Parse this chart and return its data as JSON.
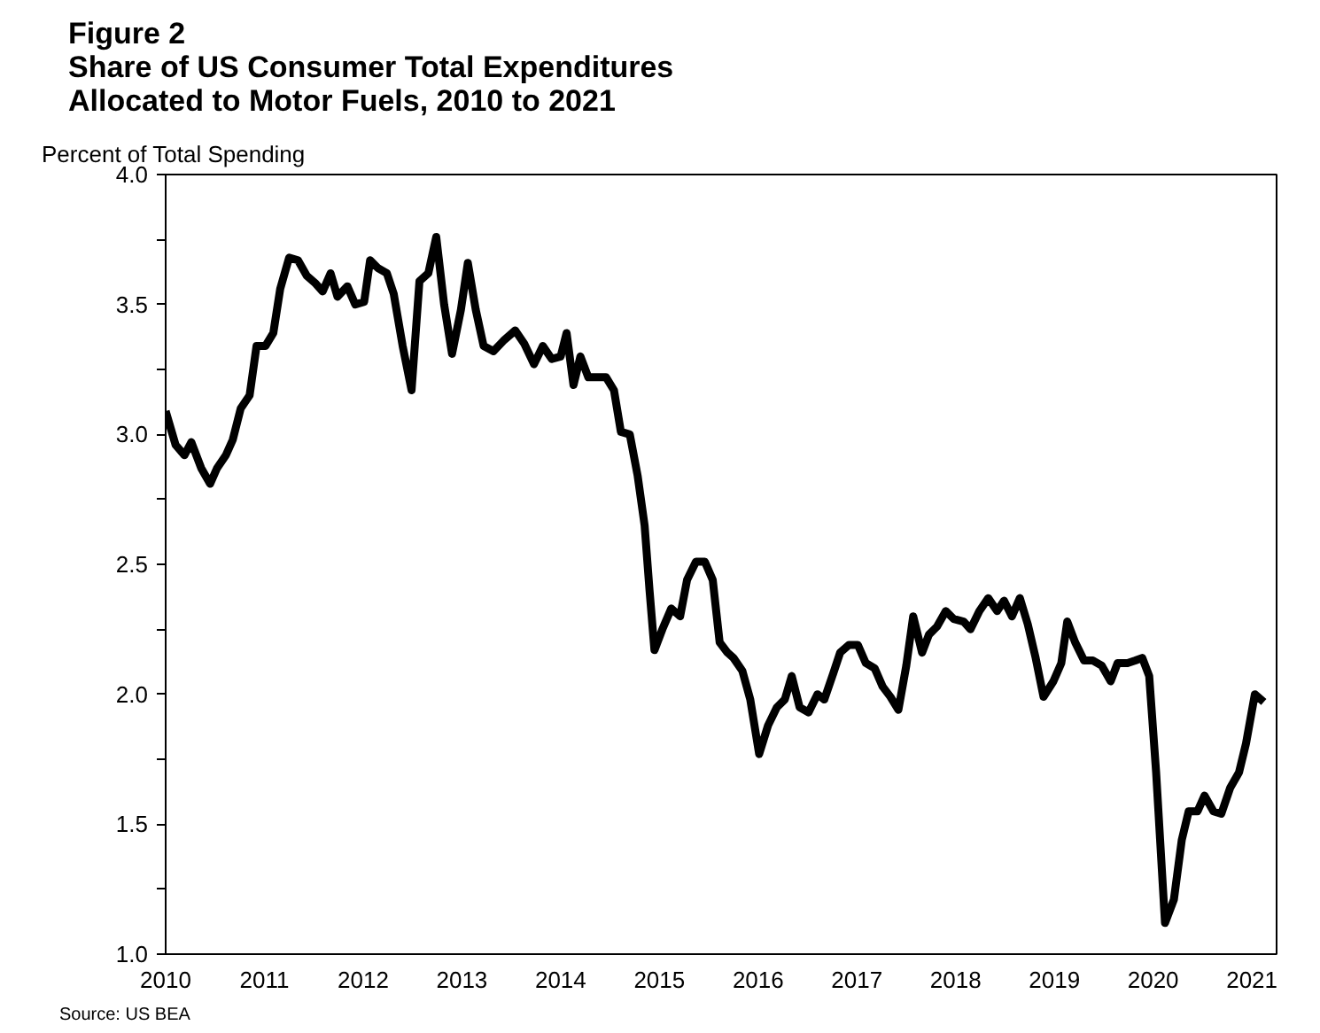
{
  "chart_data": {
    "type": "line",
    "title": "Figure 2\nShare of US Consumer Total Expenditures\nAllocated to Motor Fuels, 2010 to 2021",
    "ylabel": "Percent of Total Spending",
    "annotations": [
      "Source: US BEA"
    ],
    "x": [
      2010.0,
      2010.1,
      2010.19,
      2010.26,
      2010.36,
      2010.45,
      2010.52,
      2010.61,
      2010.68,
      2010.76,
      2010.85,
      2010.92,
      2011.01,
      2011.09,
      2011.16,
      2011.25,
      2011.34,
      2011.43,
      2011.52,
      2011.59,
      2011.67,
      2011.74,
      2011.84,
      2011.92,
      2012.01,
      2012.07,
      2012.15,
      2012.24,
      2012.31,
      2012.4,
      2012.49,
      2012.57,
      2012.66,
      2012.74,
      2012.82,
      2012.9,
      2012.99,
      2013.06,
      2013.14,
      2013.22,
      2013.32,
      2013.42,
      2013.54,
      2013.63,
      2013.73,
      2013.82,
      2013.91,
      2014.0,
      2014.06,
      2014.13,
      2014.2,
      2014.28,
      2014.37,
      2014.46,
      2014.54,
      2014.61,
      2014.7,
      2014.78,
      2014.85,
      2014.9,
      2014.95,
      2015.03,
      2015.12,
      2015.21,
      2015.28,
      2015.37,
      2015.46,
      2015.54,
      2015.61,
      2015.69,
      2015.75,
      2015.84,
      2015.92,
      2016.01,
      2016.1,
      2016.19,
      2016.27,
      2016.34,
      2016.42,
      2016.51,
      2016.6,
      2016.67,
      2016.76,
      2016.83,
      2016.92,
      2017.01,
      2017.09,
      2017.18,
      2017.26,
      2017.34,
      2017.42,
      2017.5,
      2017.57,
      2017.66,
      2017.73,
      2017.81,
      2017.9,
      2017.98,
      2018.08,
      2018.15,
      2018.24,
      2018.33,
      2018.42,
      2018.49,
      2018.57,
      2018.65,
      2018.73,
      2018.81,
      2018.89,
      2018.99,
      2019.07,
      2019.13,
      2019.21,
      2019.3,
      2019.39,
      2019.48,
      2019.57,
      2019.64,
      2019.74,
      2019.82,
      2019.89,
      2019.96,
      2020.03,
      2020.12,
      2020.21,
      2020.29,
      2020.36,
      2020.45,
      2020.52,
      2020.61,
      2020.69,
      2020.78,
      2020.87,
      2020.94,
      2021.03,
      2021.12
    ],
    "series": [
      {
        "color": "#000000",
        "values": [
          3.09,
          2.96,
          2.92,
          2.97,
          2.87,
          2.81,
          2.87,
          2.92,
          2.98,
          3.1,
          3.15,
          3.34,
          3.34,
          3.39,
          3.56,
          3.68,
          3.67,
          3.61,
          3.58,
          3.55,
          3.62,
          3.53,
          3.57,
          3.5,
          3.51,
          3.67,
          3.64,
          3.62,
          3.54,
          3.34,
          3.17,
          3.59,
          3.62,
          3.76,
          3.5,
          3.31,
          3.48,
          3.66,
          3.48,
          3.34,
          3.32,
          3.36,
          3.4,
          3.35,
          3.27,
          3.34,
          3.29,
          3.3,
          3.39,
          3.19,
          3.3,
          3.22,
          3.22,
          3.22,
          3.17,
          3.01,
          3.0,
          2.84,
          2.65,
          2.4,
          2.17,
          2.25,
          2.33,
          2.3,
          2.44,
          2.51,
          2.51,
          2.44,
          2.2,
          2.16,
          2.14,
          2.09,
          1.98,
          1.77,
          1.88,
          1.95,
          1.98,
          2.07,
          1.95,
          1.93,
          2.0,
          1.98,
          2.08,
          2.16,
          2.19,
          2.19,
          2.12,
          2.1,
          2.03,
          1.99,
          1.94,
          2.11,
          2.3,
          2.16,
          2.23,
          2.26,
          2.32,
          2.29,
          2.28,
          2.25,
          2.32,
          2.37,
          2.32,
          2.36,
          2.3,
          2.37,
          2.27,
          2.14,
          1.99,
          2.05,
          2.12,
          2.28,
          2.2,
          2.13,
          2.13,
          2.11,
          2.05,
          2.12,
          2.12,
          2.13,
          2.14,
          2.07,
          1.7,
          1.12,
          1.21,
          1.44,
          1.55,
          1.55,
          1.61,
          1.55,
          1.54,
          1.64,
          1.7,
          1.81,
          2.0,
          1.97
        ]
      }
    ],
    "xlim": [
      2010,
      2021.25
    ],
    "xticks": [
      2010,
      2011,
      2012,
      2013,
      2014,
      2015,
      2016,
      2017,
      2018,
      2019,
      2020,
      2021
    ],
    "ylim": [
      1.0,
      4.0
    ],
    "yticks": [
      {
        "value": 1.0,
        "label": "1.0"
      },
      {
        "value": 1.25,
        "label": null
      },
      {
        "value": 1.5,
        "label": "1.5"
      },
      {
        "value": 1.75,
        "label": null
      },
      {
        "value": 2.0,
        "label": "2.0"
      },
      {
        "value": 2.25,
        "label": null
      },
      {
        "value": 2.5,
        "label": "2.5"
      },
      {
        "value": 2.75,
        "label": null
      },
      {
        "value": 3.0,
        "label": "3.0"
      },
      {
        "value": 3.25,
        "label": null
      },
      {
        "value": 3.5,
        "label": "3.5"
      },
      {
        "value": 3.75,
        "label": null
      },
      {
        "value": 4.0,
        "label": "4.0"
      }
    ],
    "grid": false,
    "line_style": "solid"
  }
}
